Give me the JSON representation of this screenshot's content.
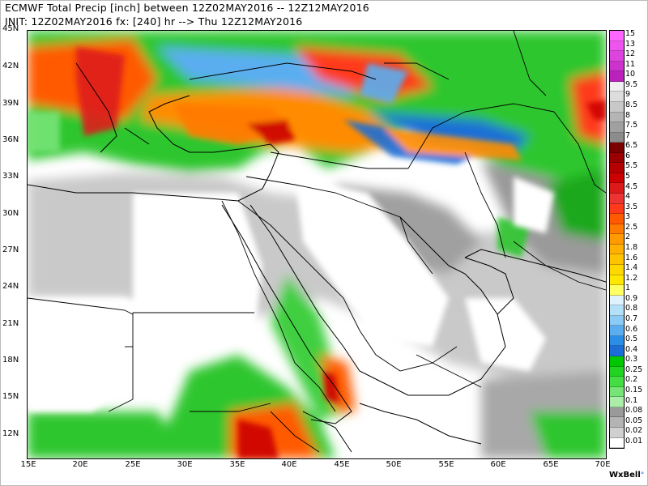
{
  "header": {
    "line1": "ECMWF Total Precip [inch] between 12Z02MAY2016 -- 12Z12MAY2016",
    "line2": "INIT: 12Z02MAY2016 fx: [240] hr --> Thu 12Z12MAY2016"
  },
  "map": {
    "lat_labels": [
      "45N",
      "42N",
      "39N",
      "36N",
      "33N",
      "30N",
      "27N",
      "24N",
      "21N",
      "18N",
      "15N",
      "12N"
    ],
    "lon_labels": [
      "15E",
      "20E",
      "25E",
      "30E",
      "35E",
      "40E",
      "45E",
      "50E",
      "55E",
      "60E",
      "65E",
      "70E"
    ],
    "extent": {
      "lon_min": 15,
      "lon_max": 70,
      "lat_min": 10,
      "lat_max": 45
    }
  },
  "colorbar": {
    "labels": [
      "15",
      "13",
      "12",
      "11",
      "10",
      "9.5",
      "9",
      "8.5",
      "8",
      "7.5",
      "7",
      "6.5",
      "6",
      "5.5",
      "5",
      "4.5",
      "4",
      "3.5",
      "3",
      "2.5",
      "2",
      "1.8",
      "1.6",
      "1.4",
      "1.2",
      "1",
      "0.9",
      "0.8",
      "0.7",
      "0.6",
      "0.5",
      "0.4",
      "0.3",
      "0.25",
      "0.2",
      "0.15",
      "0.1",
      "0.08",
      "0.05",
      "0.02",
      "0.01"
    ],
    "colors": [
      "#ff66ff",
      "#ee55ee",
      "#dd44dd",
      "#cc33cc",
      "#bb22bb",
      "#f0f0f0",
      "#dddddd",
      "#c8c8c8",
      "#b4b4b4",
      "#a0a0a0",
      "#8c8c8c",
      "#7a0000",
      "#9a0000",
      "#b40000",
      "#cc0000",
      "#dd1a1a",
      "#ee3333",
      "#ff3a1a",
      "#ff5a00",
      "#ff7a00",
      "#ff9a00",
      "#ffb000",
      "#ffc400",
      "#ffd800",
      "#ffe800",
      "#ffff66",
      "#dff3ff",
      "#b4e1fa",
      "#8ccbf5",
      "#5aaef0",
      "#2a8ee6",
      "#1c6ed6",
      "#00c800",
      "#22d322",
      "#44dd44",
      "#77e477",
      "#aaeeaa",
      "#9a9a9a",
      "#b4b4b4",
      "#d0d0d0",
      "#ffffff"
    ]
  },
  "brand": {
    "name": "WxBell",
    "mark": "°"
  }
}
